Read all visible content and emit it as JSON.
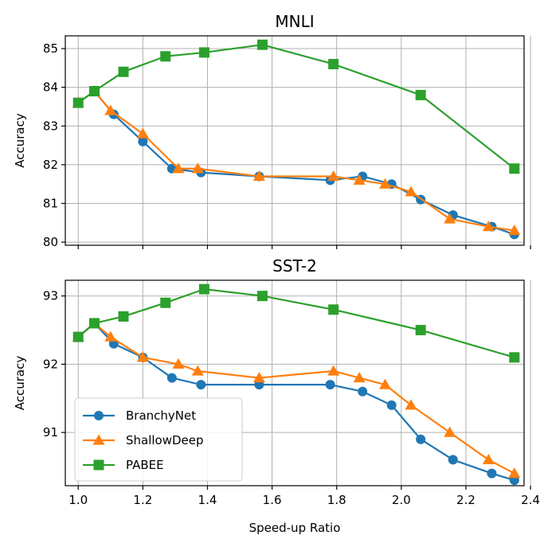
{
  "chart_data": [
    {
      "type": "line",
      "title": "MNLI",
      "xlabel": "",
      "ylabel": "Accuracy",
      "xlim": [
        0.96,
        2.38
      ],
      "ylim": [
        79.92,
        85.33
      ],
      "x_ticks": [
        1.0,
        1.2,
        1.4,
        1.6,
        1.8,
        2.0,
        2.2,
        2.4
      ],
      "x_tick_labels_shown": false,
      "y_ticks": [
        80,
        81,
        82,
        83,
        84,
        85
      ],
      "y_tick_labels": [
        "80",
        "81",
        "82",
        "83",
        "84",
        "85"
      ],
      "grid": true,
      "series": [
        {
          "name": "BranchyNet",
          "color": "#1f77b4",
          "marker": "circle",
          "x": [
            1.0,
            1.05,
            1.11,
            1.2,
            1.29,
            1.38,
            1.56,
            1.78,
            1.88,
            1.97,
            2.06,
            2.16,
            2.28,
            2.35
          ],
          "y": [
            83.6,
            83.9,
            83.3,
            82.6,
            81.9,
            81.8,
            81.7,
            81.6,
            81.7,
            81.5,
            81.1,
            80.7,
            80.4,
            80.2
          ]
        },
        {
          "name": "ShallowDeep",
          "color": "#ff7f0e",
          "marker": "triangle",
          "x": [
            1.0,
            1.05,
            1.1,
            1.2,
            1.31,
            1.37,
            1.56,
            1.79,
            1.87,
            1.95,
            2.03,
            2.15,
            2.27,
            2.35
          ],
          "y": [
            83.6,
            83.9,
            83.4,
            82.8,
            81.9,
            81.9,
            81.7,
            81.7,
            81.6,
            81.5,
            81.3,
            80.6,
            80.4,
            80.3
          ]
        },
        {
          "name": "PABEE",
          "color": "#2ca02c",
          "marker": "square",
          "x": [
            1.0,
            1.05,
            1.14,
            1.27,
            1.39,
            1.57,
            1.79,
            2.06,
            2.35
          ],
          "y": [
            83.6,
            83.9,
            84.4,
            84.8,
            84.9,
            85.1,
            84.6,
            83.8,
            81.9
          ]
        }
      ]
    },
    {
      "type": "line",
      "title": "SST-2",
      "xlabel": "Speed-up Ratio",
      "ylabel": "Accuracy",
      "xlim": [
        0.96,
        2.38
      ],
      "ylim": [
        90.22,
        93.23
      ],
      "x_ticks": [
        1.0,
        1.2,
        1.4,
        1.6,
        1.8,
        2.0,
        2.2,
        2.4
      ],
      "x_tick_labels": [
        "1.0",
        "1.2",
        "1.4",
        "1.6",
        "1.8",
        "2.0",
        "2.2",
        "2.4"
      ],
      "y_ticks": [
        91,
        92,
        93
      ],
      "y_tick_labels": [
        "91",
        "92",
        "93"
      ],
      "grid": true,
      "legend": "lower-left",
      "series": [
        {
          "name": "BranchyNet",
          "color": "#1f77b4",
          "marker": "circle",
          "x": [
            1.0,
            1.05,
            1.11,
            1.2,
            1.29,
            1.38,
            1.56,
            1.78,
            1.88,
            1.97,
            2.06,
            2.16,
            2.28,
            2.35
          ],
          "y": [
            92.4,
            92.6,
            92.3,
            92.1,
            91.8,
            91.7,
            91.7,
            91.7,
            91.6,
            91.4,
            90.9,
            90.6,
            90.4,
            90.3
          ]
        },
        {
          "name": "ShallowDeep",
          "color": "#ff7f0e",
          "marker": "triangle",
          "x": [
            1.0,
            1.05,
            1.1,
            1.2,
            1.31,
            1.37,
            1.56,
            1.79,
            1.87,
            1.95,
            2.03,
            2.15,
            2.27,
            2.35
          ],
          "y": [
            92.4,
            92.6,
            92.4,
            92.1,
            92.0,
            91.9,
            91.8,
            91.9,
            91.8,
            91.7,
            91.4,
            91.0,
            90.6,
            90.4
          ]
        },
        {
          "name": "PABEE",
          "color": "#2ca02c",
          "marker": "square",
          "x": [
            1.0,
            1.05,
            1.14,
            1.27,
            1.39,
            1.57,
            1.79,
            2.06,
            2.35
          ],
          "y": [
            92.4,
            92.6,
            92.7,
            92.9,
            93.1,
            93.0,
            92.8,
            92.5,
            92.1
          ]
        }
      ]
    }
  ]
}
